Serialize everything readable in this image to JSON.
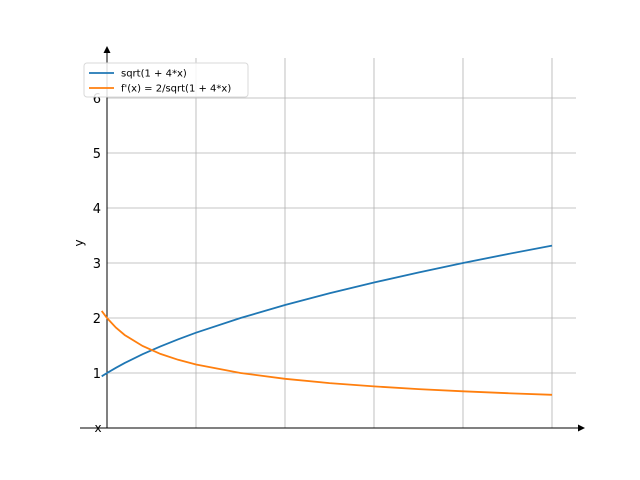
{
  "chart_data": {
    "type": "line",
    "title": "",
    "xlabel": "x",
    "ylabel": "y",
    "xlim": [
      -0.05,
      2.6
    ],
    "ylim": [
      0,
      6.7
    ],
    "x_ticks": [
      0.5,
      1.0,
      1.5,
      2.0,
      2.5
    ],
    "x_tick_labels": [],
    "y_ticks": [
      1,
      2,
      3,
      4,
      5,
      6
    ],
    "y_tick_labels": [
      "1",
      "2",
      "3",
      "4",
      "5",
      "6"
    ],
    "grid": true,
    "legend_position": "top-left",
    "series": [
      {
        "name": "sqrt(1 + 4*x)",
        "color": "#1f77b4",
        "x": [
          -0.03,
          0.0,
          0.05,
          0.1,
          0.2,
          0.3,
          0.4,
          0.5,
          0.75,
          1.0,
          1.25,
          1.5,
          1.75,
          2.0,
          2.25,
          2.5
        ],
        "y": [
          0.94,
          1.0,
          1.095,
          1.183,
          1.342,
          1.483,
          1.612,
          1.732,
          2.0,
          2.236,
          2.449,
          2.646,
          2.828,
          3.0,
          3.162,
          3.317
        ]
      },
      {
        "name": "f'(x) = 2/sqrt(1 + 4*x)",
        "color": "#ff7f0e",
        "x": [
          -0.03,
          0.0,
          0.05,
          0.1,
          0.2,
          0.3,
          0.4,
          0.5,
          0.75,
          1.0,
          1.25,
          1.5,
          1.75,
          2.0,
          2.25,
          2.5
        ],
        "y": [
          2.13,
          2.0,
          1.826,
          1.69,
          1.491,
          1.348,
          1.24,
          1.155,
          1.0,
          0.894,
          0.816,
          0.756,
          0.707,
          0.667,
          0.632,
          0.603
        ]
      }
    ]
  }
}
